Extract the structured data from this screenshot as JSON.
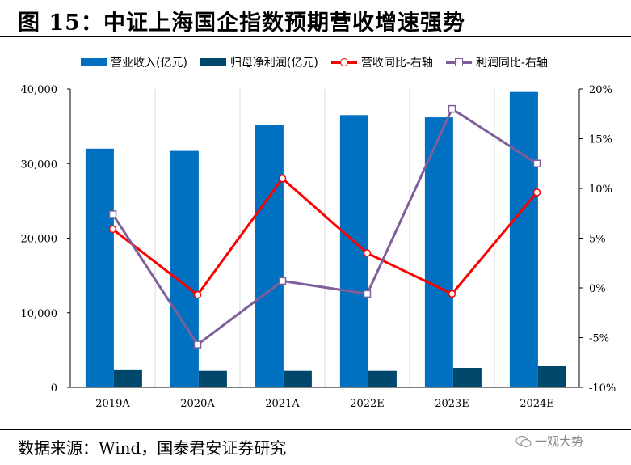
{
  "title": "图 15：中证上海国企指数预期营收增速强势",
  "source": "数据来源：Wind，国泰君安证券研究",
  "watermark": "一观大势",
  "colors": {
    "revenue_bar": "#0070c0",
    "profit_bar": "#00476c",
    "revenue_yoy_line": "#ff0000",
    "profit_yoy_line": "#7f5f9a"
  },
  "legend": [
    {
      "label": "营业收入(亿元)",
      "type": "bar",
      "color_key": "revenue_bar"
    },
    {
      "label": "归母净利润(亿元)",
      "type": "bar",
      "color_key": "profit_bar"
    },
    {
      "label": "营收同比-右轴",
      "type": "line-circle",
      "color_key": "revenue_yoy_line"
    },
    {
      "label": "利润同比-右轴",
      "type": "line-square",
      "color_key": "profit_yoy_line"
    }
  ],
  "chart_data": {
    "type": "bar",
    "categories": [
      "2019A",
      "2020A",
      "2021A",
      "2022E",
      "2023E",
      "2024E"
    ],
    "series": [
      {
        "name": "营业收入(亿元)",
        "kind": "bar",
        "axis": "left",
        "values": [
          32000,
          31700,
          35200,
          36500,
          36200,
          39600
        ]
      },
      {
        "name": "归母净利润(亿元)",
        "kind": "bar",
        "axis": "left",
        "values": [
          2400,
          2200,
          2200,
          2200,
          2600,
          2900
        ]
      },
      {
        "name": "营收同比-右轴",
        "kind": "line",
        "marker": "circle",
        "axis": "right",
        "values": [
          5.9,
          -0.7,
          11.0,
          3.5,
          -0.6,
          9.6
        ]
      },
      {
        "name": "利润同比-右轴",
        "kind": "line",
        "marker": "square",
        "axis": "right",
        "values": [
          7.4,
          -5.7,
          0.7,
          -0.6,
          18.0,
          12.5
        ]
      }
    ],
    "y_left": {
      "min": 0,
      "max": 40000,
      "ticks": [
        0,
        10000,
        20000,
        30000,
        40000
      ],
      "tick_labels": [
        "0",
        "10,000",
        "20,000",
        "30,000",
        "40,000"
      ]
    },
    "y_right": {
      "min": -10,
      "max": 20,
      "ticks": [
        -10,
        -5,
        0,
        5,
        10,
        15,
        20
      ],
      "tick_labels": [
        "-10%",
        "-5%",
        "0%",
        "5%",
        "10%",
        "15%",
        "20%"
      ]
    },
    "grid": "vertical",
    "legend_position": "top"
  }
}
